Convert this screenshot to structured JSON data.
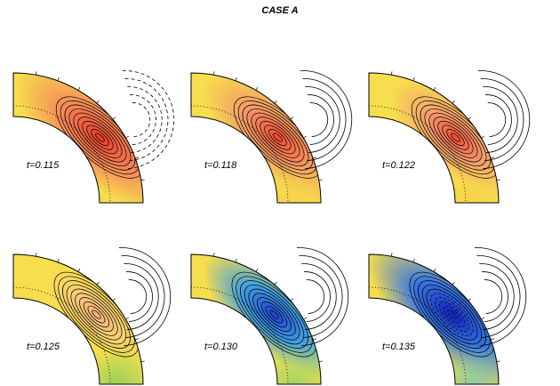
{
  "title": "CASE A",
  "panels": [
    {
      "label": "t=0.115"
    },
    {
      "label": "t=0.118"
    },
    {
      "label": "t=0.122"
    },
    {
      "label": "t=0.125"
    },
    {
      "label": "t=0.130"
    },
    {
      "label": "t=0.135"
    }
  ]
}
